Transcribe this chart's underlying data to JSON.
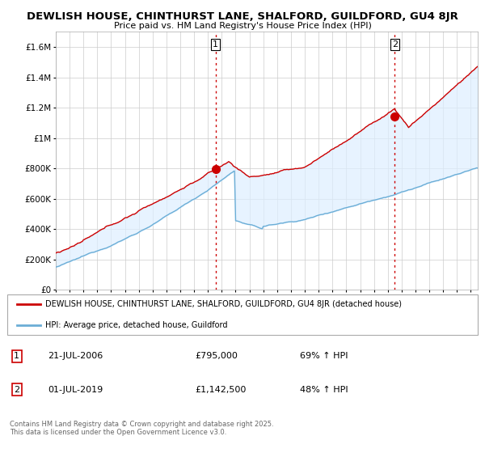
{
  "title_line1": "DEWLISH HOUSE, CHINTHURST LANE, SHALFORD, GUILDFORD, GU4 8JR",
  "title_line2": "Price paid vs. HM Land Registry's House Price Index (HPI)",
  "ylim": [
    0,
    1700000
  ],
  "yticks": [
    0,
    200000,
    400000,
    600000,
    800000,
    1000000,
    1200000,
    1400000,
    1600000
  ],
  "ytick_labels": [
    "£0",
    "£200K",
    "£400K",
    "£600K",
    "£800K",
    "£1M",
    "£1.2M",
    "£1.4M",
    "£1.6M"
  ],
  "hpi_color": "#6baed6",
  "hpi_fill_color": "#ddeeff",
  "price_color": "#cc0000",
  "dashed_vline_color": "#cc0000",
  "background_color": "#ffffff",
  "grid_color": "#cccccc",
  "purchase1_year": 2006.55,
  "purchase1_price": 795000,
  "purchase2_year": 2019.5,
  "purchase2_price": 1142500,
  "legend_label_price": "DEWLISH HOUSE, CHINTHURST LANE, SHALFORD, GUILDFORD, GU4 8JR (detached house)",
  "legend_label_hpi": "HPI: Average price, detached house, Guildford",
  "annotation1_label": "1",
  "annotation1_date": "21-JUL-2006",
  "annotation1_price": "£795,000",
  "annotation1_hpi": "69% ↑ HPI",
  "annotation2_label": "2",
  "annotation2_date": "01-JUL-2019",
  "annotation2_price": "£1,142,500",
  "annotation2_hpi": "48% ↑ HPI",
  "copyright_text": "Contains HM Land Registry data © Crown copyright and database right 2025.\nThis data is licensed under the Open Government Licence v3.0.",
  "xlim_start": 1995.0,
  "xlim_end": 2025.5
}
